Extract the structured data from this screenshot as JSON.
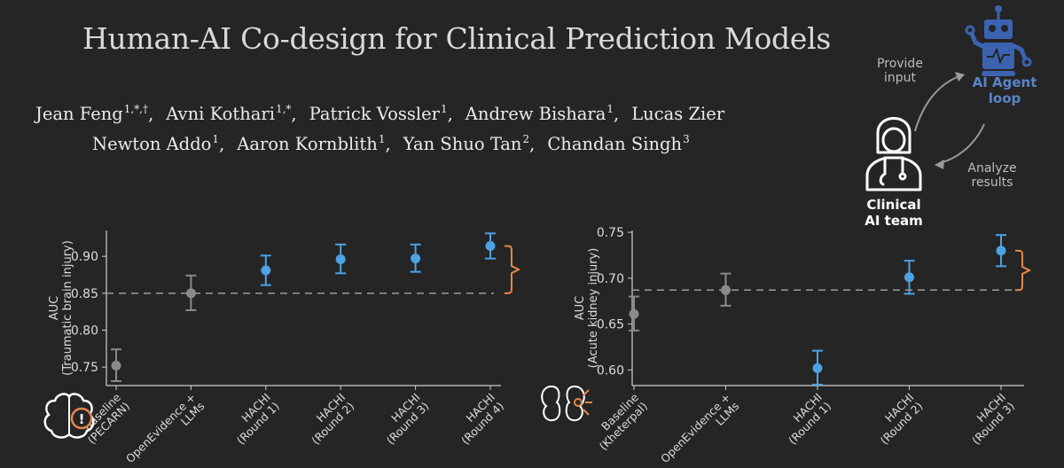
{
  "title": "Human-AI Co-design for Clinical Prediction Models",
  "authors": {
    "line1": [
      {
        "name": "Jean Feng",
        "sup": "1,*,†"
      },
      {
        "name": "Avni Kothari",
        "sup": "1,*"
      },
      {
        "name": "Patrick Vossler",
        "sup": "1"
      },
      {
        "name": "Andrew Bishara",
        "sup": "1"
      },
      {
        "name": "Lucas Zier",
        "sup": ""
      }
    ],
    "line2": [
      {
        "name": "Newton Addo",
        "sup": "1"
      },
      {
        "name": "Aaron Kornblith",
        "sup": "1"
      },
      {
        "name": "Yan Shuo Tan",
        "sup": "2"
      },
      {
        "name": "Chandan Singh",
        "sup": "3"
      }
    ]
  },
  "diagram": {
    "provide_input": [
      "Provide",
      "input"
    ],
    "agent_label": [
      "AI Agent",
      "loop"
    ],
    "analyze_results": [
      "Analyze",
      "results"
    ],
    "team_label": [
      "Clinical",
      "AI team"
    ]
  },
  "colors": {
    "background": "#252525",
    "baseline": "#8a8a8a",
    "hachi": "#4ba3e3",
    "bracket": "#e8864a",
    "agent": "#3b63b0"
  },
  "chart_data": [
    {
      "type": "scatter",
      "subtype": "errorbar",
      "ylabel": [
        "AUC",
        "(Traumatic brain injury)"
      ],
      "ylim": [
        0.725,
        0.935
      ],
      "yticks": [
        0.75,
        0.8,
        0.85,
        0.9
      ],
      "baseline_line": 0.85,
      "icon": "brain-alert-icon",
      "categories": [
        [
          "Baseline",
          "(PECARN)"
        ],
        [
          "OpenEvidence +",
          "LLMs"
        ],
        [
          "HACHI",
          "(Round 1)"
        ],
        [
          "HACHI",
          "(Round 2)"
        ],
        [
          "HACHI",
          "(Round 3)"
        ],
        [
          "HACHI",
          "(Round 4)"
        ]
      ],
      "values": [
        0.752,
        0.85,
        0.881,
        0.896,
        0.897,
        0.914
      ],
      "lower": [
        0.731,
        0.827,
        0.861,
        0.877,
        0.879,
        0.897
      ],
      "upper": [
        0.774,
        0.874,
        0.901,
        0.916,
        0.916,
        0.931
      ],
      "groups": [
        "baseline",
        "baseline",
        "hachi",
        "hachi",
        "hachi",
        "hachi"
      ]
    },
    {
      "type": "scatter",
      "subtype": "errorbar",
      "ylabel": [
        "AUC",
        "(Acute kidney injury)"
      ],
      "ylim": [
        0.583,
        0.752
      ],
      "yticks": [
        0.6,
        0.65,
        0.7,
        0.75
      ],
      "baseline_line": 0.687,
      "icon": "kidney-alert-icon",
      "categories": [
        [
          "Baseline",
          "(Kheterpal)"
        ],
        [
          "OpenEvidence +",
          "LLMs"
        ],
        [
          "HACHI",
          "(Round 1)"
        ],
        [
          "HACHI",
          "(Round 2)"
        ],
        [
          "HACHI",
          "(Round 3)"
        ]
      ],
      "values": [
        0.661,
        0.687,
        0.602,
        0.701,
        0.73
      ],
      "lower": [
        0.643,
        0.67,
        0.584,
        0.683,
        0.713
      ],
      "upper": [
        0.68,
        0.705,
        0.621,
        0.719,
        0.747
      ],
      "groups": [
        "baseline",
        "baseline",
        "hachi",
        "hachi",
        "hachi"
      ]
    }
  ]
}
